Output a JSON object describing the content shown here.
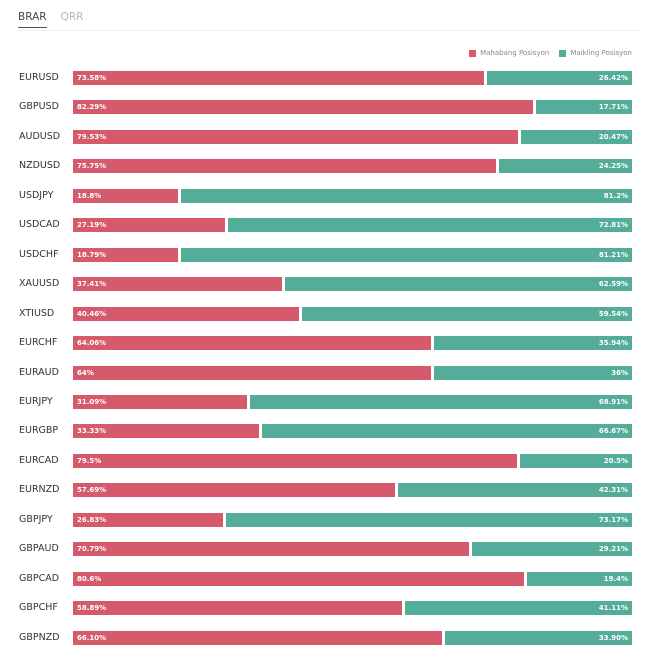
{
  "tabs": [
    {
      "label": "BRAR",
      "active": true
    },
    {
      "label": "QRR",
      "active": false
    }
  ],
  "legend": {
    "long_label": "Mahabang Posisyon",
    "short_label": "Maikling Posisyon"
  },
  "colors": {
    "long": "#d55b6c",
    "short": "#53ad99"
  },
  "chart_data": {
    "type": "bar",
    "orientation": "horizontal",
    "stacked": true,
    "categories": [
      "EURUSD",
      "GBPUSD",
      "AUDUSD",
      "NZDUSD",
      "USDJPY",
      "USDCAD",
      "USDCHF",
      "XAUUSD",
      "XTIUSD",
      "EURCHF",
      "EURAUD",
      "EURJPY",
      "EURGBP",
      "EURCAD",
      "EURNZD",
      "GBPJPY",
      "GBPAUD",
      "GBPCAD",
      "GBPCHF",
      "GBPNZD"
    ],
    "series": [
      {
        "name": "Mahabang Posisyon",
        "values": [
          73.58,
          82.29,
          79.53,
          75.75,
          18.8,
          27.19,
          18.79,
          37.41,
          40.46,
          64.06,
          64,
          31.09,
          33.33,
          79.5,
          57.69,
          26.83,
          70.79,
          80.6,
          58.89,
          66.1
        ],
        "labels": [
          "73.58%",
          "82.29%",
          "79.53%",
          "75.75%",
          "18.8%",
          "27.19%",
          "18.79%",
          "37.41%",
          "40.46%",
          "64.06%",
          "64%",
          "31.09%",
          "33.33%",
          "79.5%",
          "57.69%",
          "26.83%",
          "70.79%",
          "80.6%",
          "58.89%",
          "66.10%"
        ]
      },
      {
        "name": "Maikling Posisyon",
        "values": [
          26.42,
          17.71,
          20.47,
          24.25,
          81.2,
          72.81,
          81.21,
          62.59,
          59.54,
          35.94,
          36,
          68.91,
          66.67,
          20.5,
          42.31,
          73.17,
          29.21,
          19.4,
          41.11,
          33.9
        ],
        "labels": [
          "26.42%",
          "17.71%",
          "20.47%",
          "24.25%",
          "81.2%",
          "72.81%",
          "81.21%",
          "62.59%",
          "59.54%",
          "35.94%",
          "36%",
          "68.91%",
          "66.67%",
          "20.5%",
          "42.31%",
          "73.17%",
          "29.21%",
          "19.4%",
          "41.11%",
          "33.90%"
        ]
      }
    ],
    "xlim": [
      0,
      100
    ],
    "legend_position": "top-right"
  }
}
